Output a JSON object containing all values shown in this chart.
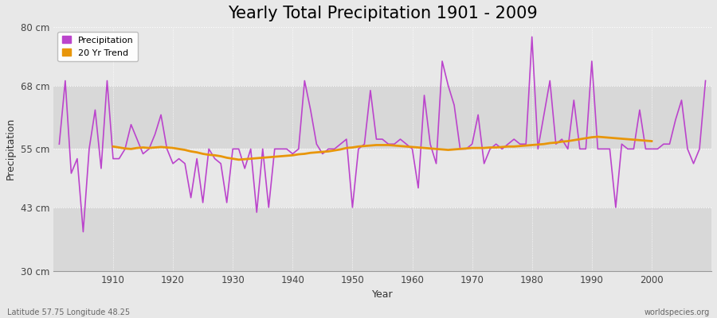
{
  "title": "Yearly Total Precipitation 1901 - 2009",
  "xlabel": "Year",
  "ylabel": "Precipitation",
  "ylim": [
    30,
    80
  ],
  "yticks": [
    30,
    43,
    55,
    68,
    80
  ],
  "ytick_labels": [
    "30 cm",
    "43 cm",
    "55 cm",
    "68 cm",
    "80 cm"
  ],
  "background_color": "#e8e8e8",
  "plot_bg_color": "#e8e8e8",
  "band_color_dark": "#d8d8d8",
  "band_color_light": "#e8e8e8",
  "line_color": "#bb44cc",
  "trend_color": "#e8960a",
  "title_fontsize": 15,
  "legend_labels": [
    "Precipitation",
    "20 Yr Trend"
  ],
  "footer_left": "Latitude 57.75 Longitude 48.25",
  "footer_right": "worldspecies.org",
  "years": [
    1901,
    1902,
    1903,
    1904,
    1905,
    1906,
    1907,
    1908,
    1909,
    1910,
    1911,
    1912,
    1913,
    1914,
    1915,
    1916,
    1917,
    1918,
    1919,
    1920,
    1921,
    1922,
    1923,
    1924,
    1925,
    1926,
    1927,
    1928,
    1929,
    1930,
    1931,
    1932,
    1933,
    1934,
    1935,
    1936,
    1937,
    1938,
    1939,
    1940,
    1941,
    1942,
    1943,
    1944,
    1945,
    1946,
    1947,
    1948,
    1949,
    1950,
    1951,
    1952,
    1953,
    1954,
    1955,
    1956,
    1957,
    1958,
    1959,
    1960,
    1961,
    1962,
    1963,
    1964,
    1965,
    1966,
    1967,
    1968,
    1969,
    1970,
    1971,
    1972,
    1973,
    1974,
    1975,
    1976,
    1977,
    1978,
    1979,
    1980,
    1981,
    1982,
    1983,
    1984,
    1985,
    1986,
    1987,
    1988,
    1989,
    1990,
    1991,
    1992,
    1993,
    1994,
    1995,
    1996,
    1997,
    1998,
    1999,
    2000,
    2001,
    2002,
    2003,
    2004,
    2005,
    2006,
    2007,
    2008,
    2009
  ],
  "precip": [
    56,
    69,
    50,
    53,
    38,
    55,
    63,
    51,
    69,
    53,
    53,
    55,
    60,
    57,
    54,
    55,
    58,
    62,
    55,
    52,
    53,
    52,
    45,
    53,
    44,
    55,
    53,
    52,
    44,
    55,
    55,
    51,
    55,
    42,
    55,
    43,
    55,
    55,
    55,
    54,
    55,
    69,
    63,
    56,
    54,
    55,
    55,
    56,
    57,
    43,
    55,
    56,
    67,
    57,
    57,
    56,
    56,
    57,
    56,
    55,
    47,
    66,
    56,
    52,
    73,
    68,
    64,
    55,
    55,
    56,
    62,
    52,
    55,
    56,
    55,
    56,
    57,
    56,
    56,
    78,
    55,
    62,
    69,
    56,
    57,
    55,
    65,
    55,
    55,
    73,
    55,
    55,
    55,
    43,
    56,
    55,
    55,
    63,
    55,
    55,
    55,
    56,
    56,
    61,
    65,
    55,
    52,
    55,
    69
  ],
  "trend": [
    null,
    null,
    null,
    null,
    null,
    null,
    null,
    null,
    null,
    55.5,
    55.3,
    55.1,
    55.0,
    55.2,
    55.3,
    55.2,
    55.3,
    55.4,
    55.3,
    55.2,
    55.0,
    54.8,
    54.5,
    54.3,
    54.0,
    53.8,
    53.7,
    53.5,
    53.2,
    53.0,
    52.8,
    52.9,
    53.0,
    53.1,
    53.2,
    53.3,
    53.4,
    53.5,
    53.6,
    53.7,
    53.9,
    54.0,
    54.2,
    54.3,
    54.4,
    54.5,
    54.7,
    54.9,
    55.2,
    55.3,
    55.5,
    55.6,
    55.7,
    55.8,
    55.8,
    55.8,
    55.7,
    55.6,
    55.5,
    55.4,
    55.3,
    55.2,
    55.1,
    55.0,
    54.9,
    54.8,
    54.9,
    55.0,
    55.1,
    55.2,
    55.2,
    55.2,
    55.3,
    55.3,
    55.4,
    55.5,
    55.5,
    55.6,
    55.7,
    55.8,
    55.9,
    56.0,
    56.2,
    56.3,
    56.5,
    56.6,
    56.8,
    57.0,
    57.2,
    57.4,
    57.5,
    57.4,
    57.3,
    57.2,
    57.1,
    57.0,
    56.9,
    56.8,
    56.7,
    56.6,
    null,
    null,
    null,
    null,
    null,
    null,
    null,
    null,
    null
  ],
  "xlim_left": 1900,
  "xlim_right": 2010
}
